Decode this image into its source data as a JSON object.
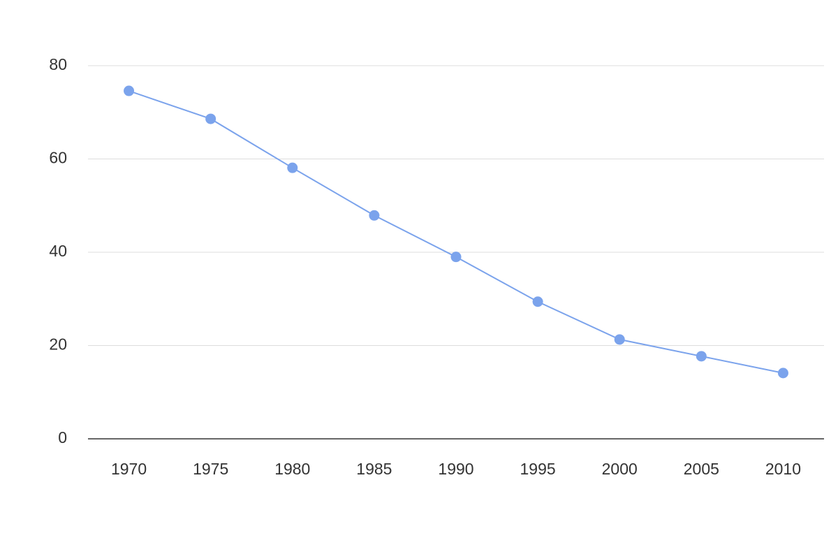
{
  "chart_data": {
    "type": "line",
    "categories": [
      "1970",
      "1975",
      "1980",
      "1985",
      "1990",
      "1995",
      "2000",
      "2005",
      "2010"
    ],
    "values": [
      74.6,
      68.6,
      58.1,
      47.9,
      39.0,
      29.4,
      21.3,
      17.7,
      14.1
    ],
    "color": "#7ba3ec",
    "ylim": [
      0,
      80
    ],
    "yticks": [
      0,
      20,
      40,
      60,
      80
    ],
    "grid": true
  }
}
